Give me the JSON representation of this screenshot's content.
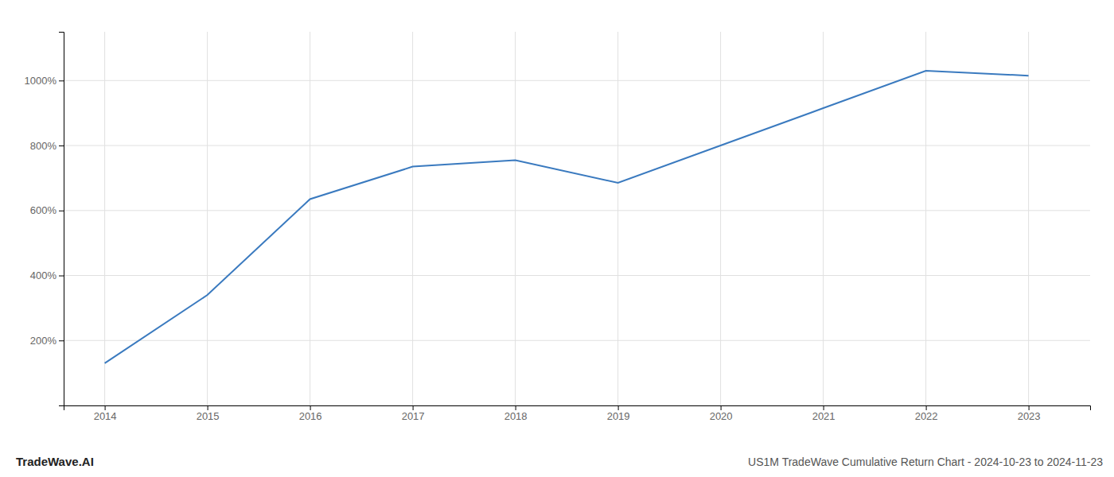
{
  "chart_data": {
    "type": "line",
    "title": "US1M TradeWave Cumulative Return Chart - 2024-10-23 to 2024-11-23",
    "annotations": [
      "TradeWave.AI"
    ],
    "x": [
      2014,
      2015,
      2016,
      2017,
      2018,
      2019,
      2020,
      2021,
      2022,
      2023
    ],
    "values": [
      130,
      340,
      635,
      735,
      755,
      685,
      800,
      915,
      1030,
      1015
    ],
    "color": "#3a7abf",
    "xlim": [
      2013.6,
      2023.6
    ],
    "ylim": [
      0,
      1150
    ],
    "xticks": [
      2014,
      2015,
      2016,
      2017,
      2018,
      2019,
      2020,
      2021,
      2022,
      2023
    ],
    "yticks": [
      {
        "value": 200,
        "label": "200%"
      },
      {
        "value": 400,
        "label": "400%"
      },
      {
        "value": 600,
        "label": "600%"
      },
      {
        "value": 800,
        "label": "800%"
      },
      {
        "value": 1000,
        "label": "1000%"
      }
    ],
    "grid": true
  }
}
